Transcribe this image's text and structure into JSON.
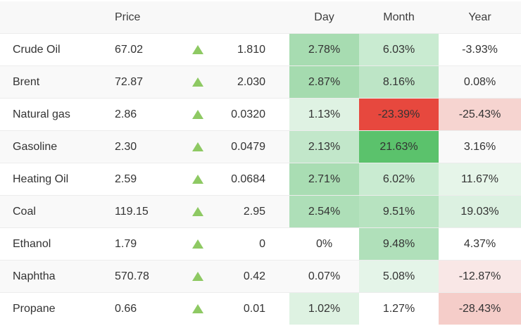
{
  "header": {
    "commodity": "",
    "price": "Price",
    "direction": "",
    "change": "",
    "day": "Day",
    "month": "Month",
    "year": "Year"
  },
  "colors": {
    "up_triangle": "#8ec963",
    "positive_strong": "#5bc26c",
    "negative_strong": "#e7483e",
    "header_bg": "#f8f8f8",
    "row_alt_bg": "#f9f9f9"
  },
  "chart_data": {
    "type": "table",
    "columns": [
      "",
      "Price",
      "",
      "",
      "Day",
      "Month",
      "Year"
    ],
    "rows": [
      {
        "name": "Crude Oil",
        "price": "67.02",
        "direction": "up",
        "change": "1.810",
        "day": "2.78%",
        "month": "6.03%",
        "year": "-3.93%",
        "day_bg": "#a7dcb1",
        "month_bg": "#c9ebd1",
        "year_bg": ""
      },
      {
        "name": "Brent",
        "price": "72.87",
        "direction": "up",
        "change": "2.030",
        "day": "2.87%",
        "month": "8.16%",
        "year": "0.08%",
        "day_bg": "#a5dbaf",
        "month_bg": "#bde5c6",
        "year_bg": ""
      },
      {
        "name": "Natural gas",
        "price": "2.86",
        "direction": "up",
        "change": "0.0320",
        "day": "1.13%",
        "month": "-23.39%",
        "year": "-25.43%",
        "day_bg": "#dff2e3",
        "month_bg": "#e7483e",
        "year_bg": "#f6d4d0"
      },
      {
        "name": "Gasoline",
        "price": "2.30",
        "direction": "up",
        "change": "0.0479",
        "day": "2.13%",
        "month": "21.63%",
        "year": "3.16%",
        "day_bg": "#c2e7ca",
        "month_bg": "#5bc26c",
        "year_bg": ""
      },
      {
        "name": "Heating Oil",
        "price": "2.59",
        "direction": "up",
        "change": "0.0684",
        "day": "2.71%",
        "month": "6.02%",
        "year": "11.67%",
        "day_bg": "#a9ddb3",
        "month_bg": "#c9ebd1",
        "year_bg": "#e6f5e9"
      },
      {
        "name": "Coal",
        "price": "119.15",
        "direction": "up",
        "change": "2.95",
        "day": "2.54%",
        "month": "9.51%",
        "year": "19.03%",
        "day_bg": "#aedfb8",
        "month_bg": "#b7e3c0",
        "year_bg": "#dcf1e1"
      },
      {
        "name": "Ethanol",
        "price": "1.79",
        "direction": "up",
        "change": "0",
        "day": "0%",
        "month": "9.48%",
        "year": "4.37%",
        "day_bg": "",
        "month_bg": "#b0e0ba",
        "year_bg": ""
      },
      {
        "name": "Naphtha",
        "price": "570.78",
        "direction": "up",
        "change": "0.42",
        "day": "0.07%",
        "month": "5.08%",
        "year": "-12.87%",
        "day_bg": "",
        "month_bg": "#e4f4e8",
        "year_bg": "#f9e7e6"
      },
      {
        "name": "Propane",
        "price": "0.66",
        "direction": "up",
        "change": "0.01",
        "day": "1.02%",
        "month": "1.27%",
        "year": "-28.43%",
        "day_bg": "#def2e2",
        "month_bg": "",
        "year_bg": "#f5cdc9"
      }
    ]
  }
}
